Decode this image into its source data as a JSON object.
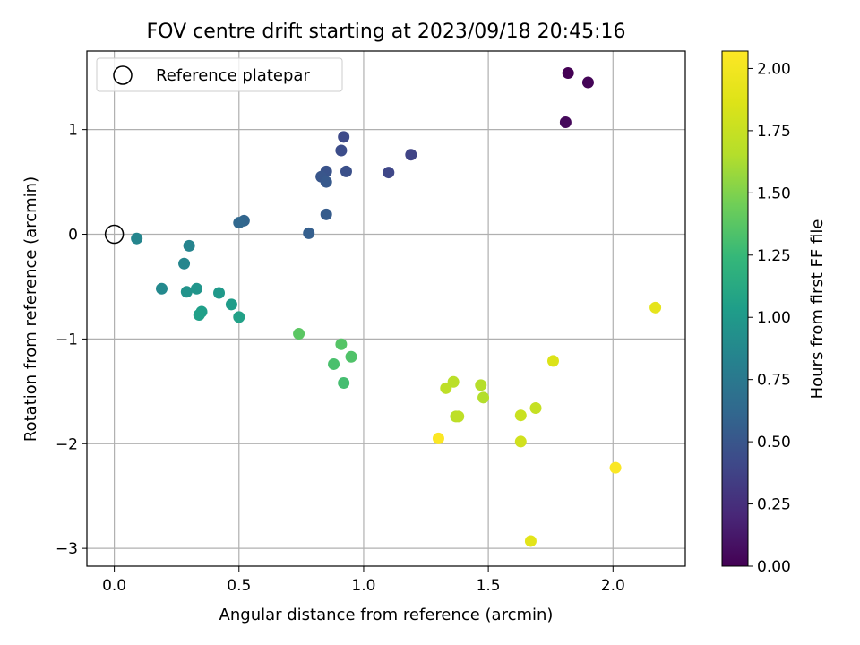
{
  "chart_data": {
    "type": "scatter",
    "title": "FOV centre drift starting at 2023/09/18 20:45:16",
    "xlabel": "Angular distance from reference (arcmin)",
    "ylabel": "Rotation from reference (arcmin)",
    "xlim": [
      -0.11,
      2.29
    ],
    "ylim": [
      -3.17,
      1.75
    ],
    "xticks": [
      "0.0",
      "0.5",
      "1.0",
      "1.5",
      "2.0"
    ],
    "xtick_values": [
      0,
      0.5,
      1.0,
      1.5,
      2.0
    ],
    "yticks": [
      "1",
      "0",
      "−1",
      "−2",
      "−3"
    ],
    "ytick_values": [
      1,
      0,
      -1,
      -2,
      -3
    ],
    "grid": true,
    "legend": {
      "position": "top-left",
      "label": "Reference platepar"
    },
    "reference_point": {
      "x": 0,
      "y": 0
    },
    "colorbar": {
      "label": "Hours from first FF file",
      "range": [
        0,
        2.07
      ],
      "ticks": [
        "0.00",
        "0.25",
        "0.50",
        "0.75",
        "1.00",
        "1.25",
        "1.50",
        "1.75",
        "2.00"
      ],
      "tick_values": [
        0,
        0.25,
        0.5,
        0.75,
        1.0,
        1.25,
        1.5,
        1.75,
        2.0
      ],
      "colormap": "viridis"
    },
    "points": [
      {
        "x": 1.82,
        "y": 1.54,
        "c": 0.0
      },
      {
        "x": 1.9,
        "y": 1.45,
        "c": 0.02
      },
      {
        "x": 1.81,
        "y": 1.07,
        "c": 0.04
      },
      {
        "x": 1.19,
        "y": 0.76,
        "c": 0.38
      },
      {
        "x": 1.1,
        "y": 0.59,
        "c": 0.4
      },
      {
        "x": 0.92,
        "y": 0.93,
        "c": 0.42
      },
      {
        "x": 0.91,
        "y": 0.8,
        "c": 0.44
      },
      {
        "x": 0.93,
        "y": 0.6,
        "c": 0.46
      },
      {
        "x": 0.85,
        "y": 0.6,
        "c": 0.48
      },
      {
        "x": 0.83,
        "y": 0.55,
        "c": 0.5
      },
      {
        "x": 0.85,
        "y": 0.5,
        "c": 0.52
      },
      {
        "x": 0.85,
        "y": 0.19,
        "c": 0.54
      },
      {
        "x": 0.78,
        "y": 0.01,
        "c": 0.56
      },
      {
        "x": 0.52,
        "y": 0.13,
        "c": 0.6
      },
      {
        "x": 0.5,
        "y": 0.11,
        "c": 0.62
      },
      {
        "x": 0.09,
        "y": -0.04,
        "c": 0.85
      },
      {
        "x": 0.3,
        "y": -0.11,
        "c": 0.84
      },
      {
        "x": 0.28,
        "y": -0.28,
        "c": 0.86
      },
      {
        "x": 0.19,
        "y": -0.52,
        "c": 0.88
      },
      {
        "x": 0.29,
        "y": -0.55,
        "c": 0.95
      },
      {
        "x": 0.33,
        "y": -0.52,
        "c": 0.97
      },
      {
        "x": 0.42,
        "y": -0.56,
        "c": 1.0
      },
      {
        "x": 0.47,
        "y": -0.67,
        "c": 1.02
      },
      {
        "x": 0.35,
        "y": -0.74,
        "c": 1.04
      },
      {
        "x": 0.34,
        "y": -0.77,
        "c": 1.05
      },
      {
        "x": 0.5,
        "y": -0.79,
        "c": 1.06
      },
      {
        "x": 0.74,
        "y": -0.95,
        "c": 1.38
      },
      {
        "x": 0.91,
        "y": -1.05,
        "c": 1.36
      },
      {
        "x": 0.95,
        "y": -1.17,
        "c": 1.34
      },
      {
        "x": 0.88,
        "y": -1.24,
        "c": 1.32
      },
      {
        "x": 0.92,
        "y": -1.42,
        "c": 1.3
      },
      {
        "x": 1.33,
        "y": -1.47,
        "c": 1.7
      },
      {
        "x": 1.36,
        "y": -1.41,
        "c": 1.68
      },
      {
        "x": 1.47,
        "y": -1.44,
        "c": 1.66
      },
      {
        "x": 1.48,
        "y": -1.56,
        "c": 1.65
      },
      {
        "x": 1.37,
        "y": -1.74,
        "c": 1.68
      },
      {
        "x": 1.38,
        "y": -1.74,
        "c": 1.7
      },
      {
        "x": 1.63,
        "y": -1.73,
        "c": 1.76
      },
      {
        "x": 1.69,
        "y": -1.66,
        "c": 1.74
      },
      {
        "x": 1.63,
        "y": -1.98,
        "c": 1.8
      },
      {
        "x": 1.76,
        "y": -1.21,
        "c": 1.86
      },
      {
        "x": 1.3,
        "y": -1.95,
        "c": 2.06
      },
      {
        "x": 1.67,
        "y": -2.93,
        "c": 1.9
      },
      {
        "x": 2.01,
        "y": -2.23,
        "c": 2.05
      },
      {
        "x": 2.17,
        "y": -0.7,
        "c": 1.92
      }
    ]
  }
}
